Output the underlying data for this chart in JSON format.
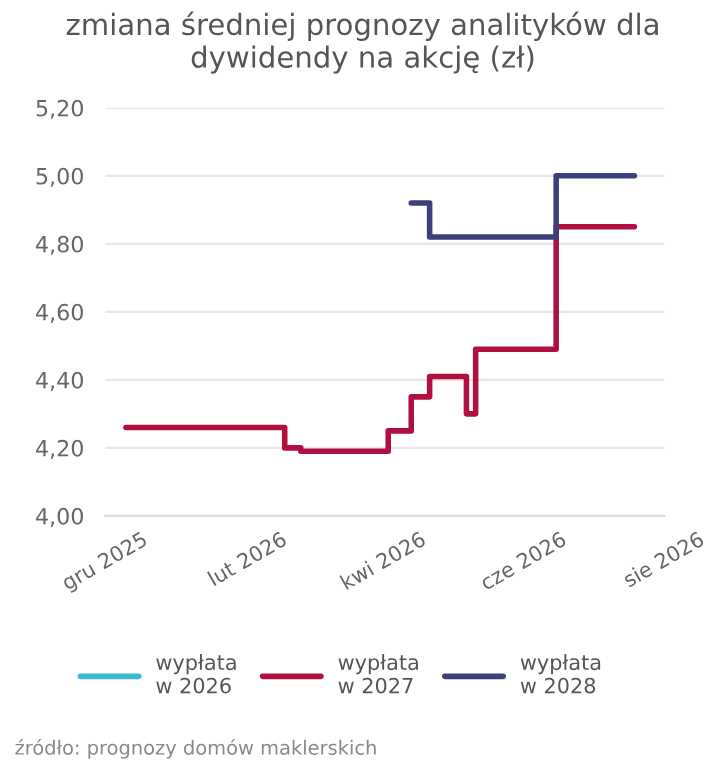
{
  "chart_data": {
    "type": "step",
    "title": "zmiana średniej prognozy analityków dla dywidendy na akcję (zł)",
    "series": [
      {
        "name": "wypłata w 2026",
        "color": "#3bb9d1"
      },
      {
        "name": "wypłata w 2027",
        "color": "#b01040",
        "x": [
          "2025-12-10",
          "2026-02-17",
          "2026-02-24",
          "2026-04-03",
          "2026-04-13",
          "2026-04-21",
          "2026-05-07",
          "2026-05-11",
          "2026-06-15",
          "2026-07-19"
        ],
        "values": [
          4.26,
          4.2,
          4.19,
          4.25,
          4.35,
          4.41,
          4.3,
          4.49,
          4.85,
          4.85
        ]
      },
      {
        "name": "wypłata w 2028",
        "color": "#3b3f7a",
        "x": [
          "2026-04-13",
          "2026-04-21",
          "2026-06-15",
          "2026-07-19"
        ],
        "values": [
          4.92,
          4.82,
          5.0,
          5.0
        ]
      }
    ],
    "xlim": [
      "2025-12-01",
      "2026-08-01"
    ],
    "xticks": [
      {
        "value": "2025-12-01",
        "label": "gru 2025"
      },
      {
        "value": "2026-02-01",
        "label": "lut 2026"
      },
      {
        "value": "2026-04-01",
        "label": "kwi 2026"
      },
      {
        "value": "2026-06-01",
        "label": "cze 2026"
      },
      {
        "value": "2026-08-01",
        "label": "sie 2026"
      }
    ],
    "ylim": [
      4.0,
      5.2
    ],
    "yticks": [
      {
        "value": 4.0,
        "label": "4,00"
      },
      {
        "value": 4.2,
        "label": "4,20"
      },
      {
        "value": 4.4,
        "label": "4,40"
      },
      {
        "value": 4.6,
        "label": "4,60"
      },
      {
        "value": 4.8,
        "label": "4,80"
      },
      {
        "value": 5.0,
        "label": "5,00"
      },
      {
        "value": 5.2,
        "label": "5,20"
      }
    ],
    "grid": "y",
    "legend": "bottom",
    "line_style": "solid",
    "annotations": [
      "źródło: prognozy domów maklerskich"
    ]
  }
}
